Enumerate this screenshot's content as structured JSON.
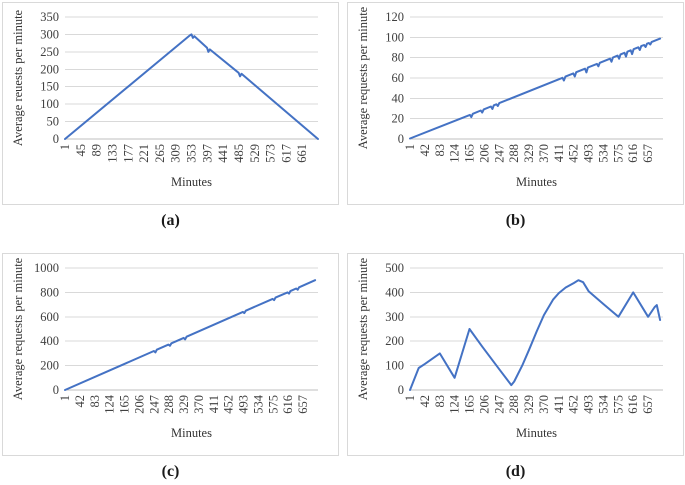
{
  "figure": {
    "background": "#ffffff",
    "line_color": "#4472C4",
    "grid_color": "#D9D9D9",
    "axis_line_color": "#BFBFBF",
    "tick_text_color": "#404040",
    "title_text_color": "#333333",
    "panel_border_color": "#D9D9D9"
  },
  "chart_data": [
    {
      "id": "a",
      "type": "line",
      "caption": "(a)",
      "xlabel": "Minutes",
      "ylabel": "Average reuests per minute",
      "x_ticks": [
        1,
        45,
        89,
        133,
        177,
        221,
        265,
        309,
        353,
        397,
        441,
        485,
        529,
        573,
        617,
        661
      ],
      "y_ticks": [
        0,
        50,
        100,
        150,
        200,
        250,
        300,
        350
      ],
      "xlim": [
        1,
        705
      ],
      "ylim": [
        0,
        350
      ],
      "grid": "horizontal",
      "legend": "none",
      "series": [
        {
          "points": [
            [
              1,
              0
            ],
            [
              348,
              297
            ],
            [
              353,
              300
            ],
            [
              357,
              290
            ],
            [
              361,
              295
            ],
            [
              396,
              262
            ],
            [
              400,
              250
            ],
            [
              404,
              257
            ],
            [
              484,
              190
            ],
            [
              488,
              180
            ],
            [
              492,
              187
            ],
            [
              705,
              0
            ]
          ]
        }
      ]
    },
    {
      "id": "b",
      "type": "line",
      "caption": "(b)",
      "xlabel": "Minutes",
      "ylabel": "Average requests per minute",
      "x_ticks": [
        1,
        42,
        83,
        124,
        165,
        206,
        247,
        288,
        329,
        370,
        411,
        452,
        493,
        534,
        575,
        616,
        657
      ],
      "y_ticks": [
        0,
        20,
        40,
        60,
        80,
        100,
        120
      ],
      "xlim": [
        1,
        698
      ],
      "ylim": [
        0,
        120
      ],
      "grid": "horizontal",
      "legend": "none",
      "series": [
        {
          "points": [
            [
              1,
              0.5
            ],
            [
              166,
              23.7
            ],
            [
              170,
              21.5
            ],
            [
              174,
              24.8
            ],
            [
              196,
              28
            ],
            [
              200,
              26
            ],
            [
              204,
              29.1
            ],
            [
              224,
              32
            ],
            [
              228,
              29.5
            ],
            [
              232,
              33.1
            ],
            [
              239,
              34.1
            ],
            [
              243,
              32.5
            ],
            [
              247,
              35.3
            ],
            [
              421,
              60.2
            ],
            [
              425,
              57.5
            ],
            [
              429,
              61.4
            ],
            [
              451,
              64.5
            ],
            [
              455,
              61.5
            ],
            [
              459,
              65.7
            ],
            [
              483,
              69.1
            ],
            [
              487,
              65.5
            ],
            [
              491,
              70.3
            ],
            [
              516,
              73.9
            ],
            [
              520,
              71.5
            ],
            [
              524,
              75
            ],
            [
              552,
              79
            ],
            [
              556,
              76
            ],
            [
              560,
              80.2
            ],
            [
              573,
              82
            ],
            [
              577,
              79
            ],
            [
              581,
              83.2
            ],
            [
              592,
              84.8
            ],
            [
              596,
              81
            ],
            [
              600,
              85.9
            ],
            [
              609,
              87.2
            ],
            [
              613,
              83.5
            ],
            [
              617,
              88.3
            ],
            [
              630,
              90.2
            ],
            [
              634,
              87.5
            ],
            [
              638,
              91.4
            ],
            [
              646,
              92.5
            ],
            [
              650,
              90.5
            ],
            [
              654,
              93.7
            ],
            [
              659,
              94.4
            ],
            [
              663,
              93
            ],
            [
              667,
              95.5
            ],
            [
              690,
              98.8
            ]
          ]
        }
      ]
    },
    {
      "id": "c",
      "type": "line",
      "caption": "(c)",
      "xlabel": "Minutes",
      "ylabel": "Average requests per minute",
      "x_ticks": [
        1,
        42,
        83,
        124,
        165,
        206,
        247,
        288,
        329,
        370,
        411,
        452,
        493,
        534,
        575,
        616,
        657
      ],
      "y_ticks": [
        0,
        200,
        400,
        600,
        800,
        1000
      ],
      "xlim": [
        1,
        698
      ],
      "ylim": [
        0,
        1000
      ],
      "grid": "horizontal",
      "legend": "none",
      "series": [
        {
          "points": [
            [
              1,
              0
            ],
            [
              246,
              320
            ],
            [
              250,
              308
            ],
            [
              254,
              330
            ],
            [
              286,
              372
            ],
            [
              290,
              362
            ],
            [
              294,
              383
            ],
            [
              328,
              427
            ],
            [
              332,
              415
            ],
            [
              336,
              437
            ],
            [
              491,
              640
            ],
            [
              495,
              630
            ],
            [
              499,
              650
            ],
            [
              573,
              747
            ],
            [
              577,
              737
            ],
            [
              581,
              757
            ],
            [
              614,
              800
            ],
            [
              618,
              790
            ],
            [
              622,
              811
            ],
            [
              638,
              832
            ],
            [
              642,
              822
            ],
            [
              646,
              842
            ],
            [
              690,
              900
            ]
          ]
        }
      ]
    },
    {
      "id": "d",
      "type": "line",
      "caption": "(d)",
      "xlabel": "Minutes",
      "ylabel": "Average requests per minute",
      "x_ticks": [
        1,
        42,
        83,
        124,
        165,
        206,
        247,
        288,
        329,
        370,
        411,
        452,
        493,
        534,
        575,
        616,
        657
      ],
      "y_ticks": [
        0,
        100,
        200,
        300,
        400,
        500
      ],
      "xlim": [
        1,
        698
      ],
      "ylim": [
        0,
        500
      ],
      "grid": "horizontal",
      "legend": "none",
      "series": [
        {
          "points": [
            [
              1,
              0
            ],
            [
              25,
              90
            ],
            [
              42,
              107
            ],
            [
              83,
              150
            ],
            [
              124,
              50
            ],
            [
              165,
              250
            ],
            [
              200,
              178
            ],
            [
              247,
              85
            ],
            [
              280,
              20
            ],
            [
              288,
              35
            ],
            [
              310,
              100
            ],
            [
              329,
              165
            ],
            [
              350,
              240
            ],
            [
              370,
              307
            ],
            [
              395,
              370
            ],
            [
              411,
              397
            ],
            [
              430,
              420
            ],
            [
              452,
              438
            ],
            [
              465,
              450
            ],
            [
              478,
              442
            ],
            [
              493,
              405
            ],
            [
              534,
              352
            ],
            [
              575,
              300
            ],
            [
              616,
              400
            ],
            [
              657,
              300
            ],
            [
              675,
              340
            ],
            [
              681,
              348
            ],
            [
              690,
              287
            ]
          ]
        }
      ]
    }
  ]
}
